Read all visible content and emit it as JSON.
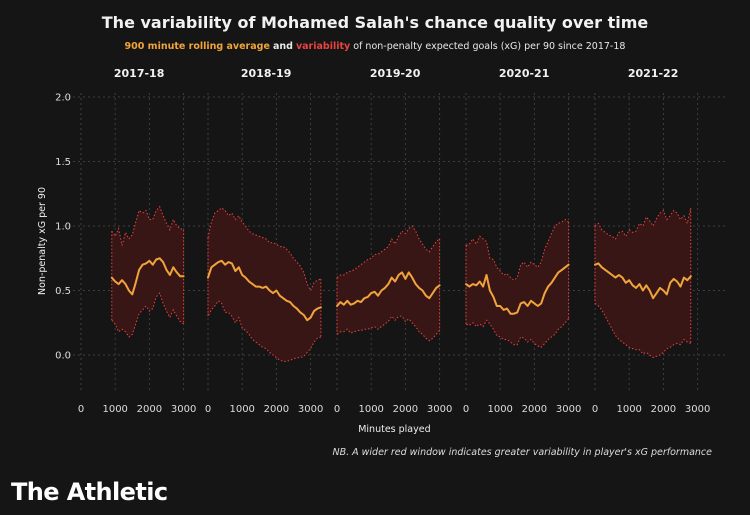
{
  "title": "The variability of Mohamed Salah's chance quality over time",
  "subtitle": {
    "avg_label": "900 minute rolling average",
    "and_label": "and",
    "var_label": "variability",
    "rest_label": "of non-penalty expected goals (xG) per 90 since 2017-18"
  },
  "note": "NB. A wider red window indicates greater variability in player's xG performance",
  "logo": "The Athletic",
  "colors": {
    "average": "#f0a43a",
    "variability": "#e8433f",
    "band_fill": "#3b1616",
    "background": "#151515"
  },
  "chart_data": {
    "type": "area",
    "ylabel": "Non-penalty xG per 90",
    "xlabel": "Minutes played",
    "ylim": [
      -0.15,
      2.0
    ],
    "yticks": [
      "2.0",
      "1.5",
      "1.0",
      "0.5",
      "0.0"
    ],
    "ytick_values": [
      2.0,
      1.5,
      1.0,
      0.5,
      0.0
    ],
    "xlim": [
      0,
      3300
    ],
    "xticks": [
      "0",
      "1000",
      "2000",
      "3000"
    ],
    "xtick_values": [
      0,
      1000,
      2000,
      3000
    ],
    "grid": true,
    "panels": [
      {
        "name": "2017-18",
        "x": [
          900,
          1000,
          1100,
          1200,
          1300,
          1400,
          1500,
          1600,
          1700,
          1800,
          1900,
          2000,
          2100,
          2200,
          2300,
          2400,
          2500,
          2600,
          2700,
          2800,
          2900,
          3000
        ],
        "avg": [
          0.6,
          0.57,
          0.55,
          0.58,
          0.55,
          0.5,
          0.47,
          0.56,
          0.66,
          0.7,
          0.71,
          0.73,
          0.7,
          0.74,
          0.75,
          0.72,
          0.66,
          0.62,
          0.68,
          0.64,
          0.61,
          0.61
        ],
        "upper": [
          0.96,
          0.92,
          0.98,
          0.85,
          0.95,
          0.9,
          0.93,
          1.03,
          1.12,
          1.1,
          1.12,
          1.05,
          1.05,
          1.12,
          1.15,
          1.08,
          1.02,
          0.97,
          1.05,
          1.0,
          0.98,
          0.97
        ],
        "lower": [
          0.27,
          0.24,
          0.18,
          0.2,
          0.18,
          0.14,
          0.16,
          0.24,
          0.32,
          0.35,
          0.38,
          0.34,
          0.36,
          0.45,
          0.48,
          0.4,
          0.34,
          0.29,
          0.35,
          0.3,
          0.26,
          0.24
        ]
      },
      {
        "name": "2018-19",
        "x": [
          0,
          100,
          200,
          300,
          400,
          500,
          600,
          700,
          800,
          900,
          1000,
          1100,
          1200,
          1300,
          1400,
          1500,
          1600,
          1700,
          1800,
          1900,
          2000,
          2100,
          2200,
          2300,
          2400,
          2500,
          2600,
          2700,
          2800,
          2900,
          3000,
          3100,
          3200,
          3300
        ],
        "avg": [
          0.6,
          0.68,
          0.7,
          0.72,
          0.73,
          0.7,
          0.72,
          0.71,
          0.65,
          0.68,
          0.62,
          0.6,
          0.57,
          0.55,
          0.53,
          0.53,
          0.52,
          0.53,
          0.5,
          0.48,
          0.5,
          0.46,
          0.44,
          0.42,
          0.41,
          0.38,
          0.36,
          0.33,
          0.31,
          0.27,
          0.29,
          0.34,
          0.36,
          0.37
        ],
        "upper": [
          0.91,
          1.03,
          1.1,
          1.12,
          1.14,
          1.12,
          1.08,
          1.1,
          1.05,
          1.08,
          1.03,
          1.0,
          0.96,
          0.94,
          0.93,
          0.92,
          0.91,
          0.9,
          0.87,
          0.87,
          0.86,
          0.84,
          0.84,
          0.82,
          0.79,
          0.75,
          0.72,
          0.69,
          0.64,
          0.55,
          0.5,
          0.56,
          0.58,
          0.59
        ],
        "lower": [
          0.3,
          0.35,
          0.38,
          0.42,
          0.4,
          0.33,
          0.33,
          0.3,
          0.25,
          0.29,
          0.21,
          0.19,
          0.16,
          0.12,
          0.1,
          0.08,
          0.06,
          0.05,
          0.02,
          0.0,
          -0.02,
          -0.04,
          -0.05,
          -0.05,
          -0.04,
          -0.03,
          -0.02,
          -0.02,
          -0.01,
          0.02,
          0.05,
          0.1,
          0.13,
          0.14
        ]
      },
      {
        "name": "2019-20",
        "x": [
          0,
          100,
          200,
          300,
          400,
          500,
          600,
          700,
          800,
          900,
          1000,
          1100,
          1200,
          1300,
          1400,
          1500,
          1600,
          1700,
          1800,
          1900,
          2000,
          2100,
          2200,
          2300,
          2400,
          2500,
          2600,
          2700,
          2800,
          2900,
          3000
        ],
        "avg": [
          0.38,
          0.41,
          0.39,
          0.42,
          0.39,
          0.4,
          0.42,
          0.41,
          0.44,
          0.45,
          0.48,
          0.49,
          0.46,
          0.5,
          0.52,
          0.55,
          0.6,
          0.57,
          0.62,
          0.64,
          0.59,
          0.64,
          0.6,
          0.55,
          0.52,
          0.5,
          0.46,
          0.44,
          0.48,
          0.52,
          0.54
        ],
        "upper": [
          0.6,
          0.62,
          0.62,
          0.64,
          0.65,
          0.66,
          0.68,
          0.7,
          0.72,
          0.74,
          0.75,
          0.78,
          0.78,
          0.8,
          0.82,
          0.84,
          0.9,
          0.86,
          0.92,
          0.96,
          0.94,
          0.98,
          1.0,
          0.96,
          0.9,
          0.86,
          0.82,
          0.8,
          0.84,
          0.88,
          0.9
        ],
        "lower": [
          0.16,
          0.18,
          0.18,
          0.2,
          0.17,
          0.18,
          0.19,
          0.19,
          0.2,
          0.2,
          0.21,
          0.22,
          0.2,
          0.22,
          0.24,
          0.26,
          0.3,
          0.27,
          0.3,
          0.3,
          0.26,
          0.28,
          0.25,
          0.22,
          0.18,
          0.16,
          0.13,
          0.11,
          0.13,
          0.16,
          0.19
        ]
      },
      {
        "name": "2020-21",
        "x": [
          0,
          100,
          200,
          300,
          400,
          500,
          600,
          700,
          800,
          900,
          1000,
          1100,
          1200,
          1300,
          1400,
          1500,
          1600,
          1700,
          1800,
          1900,
          2000,
          2100,
          2200,
          2300,
          2400,
          2500,
          2600,
          2700,
          2800,
          2900,
          3000
        ],
        "avg": [
          0.55,
          0.53,
          0.55,
          0.54,
          0.57,
          0.53,
          0.62,
          0.5,
          0.45,
          0.38,
          0.38,
          0.35,
          0.36,
          0.32,
          0.32,
          0.33,
          0.4,
          0.41,
          0.38,
          0.42,
          0.4,
          0.38,
          0.4,
          0.48,
          0.53,
          0.56,
          0.6,
          0.64,
          0.66,
          0.68,
          0.7
        ],
        "upper": [
          0.85,
          0.86,
          0.9,
          0.86,
          0.92,
          0.9,
          0.88,
          0.75,
          0.74,
          0.68,
          0.65,
          0.62,
          0.63,
          0.6,
          0.58,
          0.6,
          0.7,
          0.72,
          0.68,
          0.72,
          0.7,
          0.68,
          0.72,
          0.82,
          0.88,
          0.94,
          1.0,
          1.02,
          1.03,
          1.05,
          1.03
        ],
        "lower": [
          0.24,
          0.23,
          0.25,
          0.22,
          0.24,
          0.22,
          0.27,
          0.24,
          0.2,
          0.15,
          0.14,
          0.12,
          0.12,
          0.1,
          0.08,
          0.08,
          0.14,
          0.13,
          0.1,
          0.12,
          0.09,
          0.07,
          0.06,
          0.09,
          0.12,
          0.14,
          0.16,
          0.2,
          0.22,
          0.25,
          0.28
        ]
      },
      {
        "name": "2021-22",
        "x": [
          0,
          100,
          200,
          300,
          400,
          500,
          600,
          700,
          800,
          900,
          1000,
          1100,
          1200,
          1300,
          1400,
          1500,
          1600,
          1700,
          1800,
          1900,
          2000,
          2100,
          2200,
          2300,
          2400,
          2500,
          2600,
          2700,
          2800
        ],
        "avg": [
          0.7,
          0.71,
          0.68,
          0.66,
          0.64,
          0.62,
          0.6,
          0.62,
          0.6,
          0.56,
          0.58,
          0.54,
          0.52,
          0.55,
          0.5,
          0.54,
          0.5,
          0.44,
          0.48,
          0.52,
          0.5,
          0.47,
          0.56,
          0.59,
          0.57,
          0.53,
          0.6,
          0.58,
          0.61
        ],
        "upper": [
          1.0,
          1.02,
          0.97,
          0.95,
          0.93,
          0.92,
          0.9,
          0.95,
          0.96,
          0.92,
          0.97,
          0.95,
          0.96,
          1.02,
          1.0,
          1.07,
          1.04,
          1.0,
          1.06,
          1.1,
          1.12,
          1.05,
          1.08,
          1.12,
          1.1,
          1.05,
          1.08,
          1.02,
          1.14
        ],
        "lower": [
          0.4,
          0.38,
          0.35,
          0.3,
          0.25,
          0.2,
          0.15,
          0.12,
          0.1,
          0.08,
          0.06,
          0.05,
          0.04,
          0.04,
          0.01,
          0.02,
          0.0,
          -0.02,
          -0.01,
          0.0,
          0.02,
          0.05,
          0.06,
          0.08,
          0.09,
          0.08,
          0.12,
          0.1,
          0.09
        ]
      }
    ]
  }
}
